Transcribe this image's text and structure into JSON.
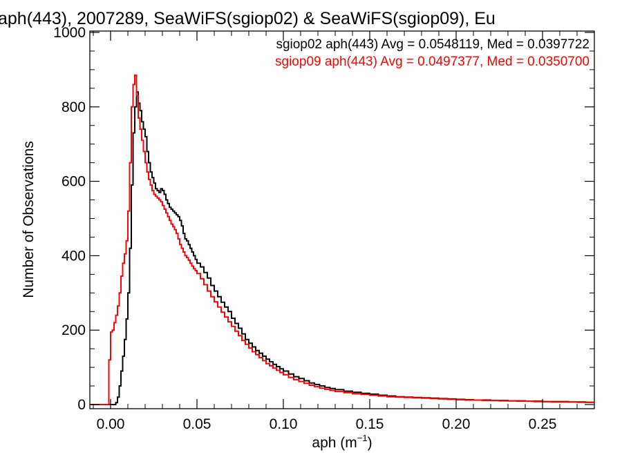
{
  "chart_data": {
    "type": "line",
    "style": "step-histogram",
    "title": "aph(443), 2007289, SeaWiFS(sgiop02) & SeaWiFS(sgiop09), Eu",
    "xlabel_base": "aph (m",
    "xlabel_exp": "−1",
    "xlabel_close": ")",
    "ylabel": "Number of Observations",
    "xlim": [
      -0.012,
      0.28
    ],
    "ylim": [
      0,
      1000
    ],
    "x_ticks": [
      {
        "value": 0.0,
        "label": "0.00"
      },
      {
        "value": 0.05,
        "label": "0.05"
      },
      {
        "value": 0.1,
        "label": "0.10"
      },
      {
        "value": 0.15,
        "label": "0.15"
      },
      {
        "value": 0.2,
        "label": "0.20"
      },
      {
        "value": 0.25,
        "label": "0.25"
      }
    ],
    "y_ticks": [
      {
        "value": 0,
        "label": "0"
      },
      {
        "value": 200,
        "label": "200"
      },
      {
        "value": 400,
        "label": "400"
      },
      {
        "value": 600,
        "label": "600"
      },
      {
        "value": 800,
        "label": "800"
      },
      {
        "value": 1000,
        "label": "1000"
      }
    ],
    "grid": false,
    "legend_position": "top-right",
    "series": [
      {
        "name": "sgiop02 aph(443) Avg = 0.0548119, Med = 0.0397722",
        "color": "#000000",
        "points": [
          [
            -0.012,
            0
          ],
          [
            0.0,
            0
          ],
          [
            0.002,
            0
          ],
          [
            0.003,
            5
          ],
          [
            0.004,
            20
          ],
          [
            0.005,
            50
          ],
          [
            0.006,
            90
          ],
          [
            0.007,
            130
          ],
          [
            0.008,
            175
          ],
          [
            0.009,
            230
          ],
          [
            0.01,
            300
          ],
          [
            0.011,
            420
          ],
          [
            0.012,
            590
          ],
          [
            0.013,
            730
          ],
          [
            0.014,
            800
          ],
          [
            0.015,
            840
          ],
          [
            0.016,
            810
          ],
          [
            0.017,
            790
          ],
          [
            0.018,
            760
          ],
          [
            0.019,
            740
          ],
          [
            0.02,
            720
          ],
          [
            0.021,
            680
          ],
          [
            0.022,
            650
          ],
          [
            0.023,
            625
          ],
          [
            0.024,
            610
          ],
          [
            0.025,
            595
          ],
          [
            0.026,
            580
          ],
          [
            0.027,
            575
          ],
          [
            0.028,
            570
          ],
          [
            0.029,
            580
          ],
          [
            0.03,
            575
          ],
          [
            0.031,
            565
          ],
          [
            0.032,
            550
          ],
          [
            0.033,
            540
          ],
          [
            0.034,
            530
          ],
          [
            0.035,
            525
          ],
          [
            0.036,
            520
          ],
          [
            0.037,
            515
          ],
          [
            0.038,
            510
          ],
          [
            0.039,
            505
          ],
          [
            0.04,
            495
          ],
          [
            0.041,
            480
          ],
          [
            0.042,
            460
          ],
          [
            0.043,
            445
          ],
          [
            0.044,
            440
          ],
          [
            0.045,
            430
          ],
          [
            0.046,
            420
          ],
          [
            0.047,
            410
          ],
          [
            0.048,
            400
          ],
          [
            0.049,
            390
          ],
          [
            0.05,
            380
          ],
          [
            0.052,
            370
          ],
          [
            0.054,
            355
          ],
          [
            0.056,
            340
          ],
          [
            0.058,
            320
          ],
          [
            0.06,
            305
          ],
          [
            0.062,
            290
          ],
          [
            0.064,
            275
          ],
          [
            0.066,
            262
          ],
          [
            0.068,
            250
          ],
          [
            0.07,
            232
          ],
          [
            0.072,
            218
          ],
          [
            0.074,
            205
          ],
          [
            0.076,
            190
          ],
          [
            0.078,
            175
          ],
          [
            0.08,
            165
          ],
          [
            0.082,
            155
          ],
          [
            0.084,
            145
          ],
          [
            0.086,
            138
          ],
          [
            0.088,
            130
          ],
          [
            0.09,
            122
          ],
          [
            0.092,
            115
          ],
          [
            0.094,
            108
          ],
          [
            0.096,
            102
          ],
          [
            0.098,
            96
          ],
          [
            0.1,
            90
          ],
          [
            0.103,
            82
          ],
          [
            0.106,
            75
          ],
          [
            0.109,
            70
          ],
          [
            0.112,
            64
          ],
          [
            0.115,
            58
          ],
          [
            0.118,
            54
          ],
          [
            0.121,
            50
          ],
          [
            0.124,
            46
          ],
          [
            0.127,
            43
          ],
          [
            0.13,
            40
          ],
          [
            0.135,
            36
          ],
          [
            0.14,
            33
          ],
          [
            0.145,
            30
          ],
          [
            0.15,
            28
          ],
          [
            0.155,
            25
          ],
          [
            0.16,
            23
          ],
          [
            0.165,
            21
          ],
          [
            0.17,
            20
          ],
          [
            0.175,
            19
          ],
          [
            0.18,
            18
          ],
          [
            0.185,
            17
          ],
          [
            0.19,
            16
          ],
          [
            0.195,
            15
          ],
          [
            0.2,
            14
          ],
          [
            0.205,
            13
          ],
          [
            0.21,
            12
          ],
          [
            0.215,
            12
          ],
          [
            0.22,
            11
          ],
          [
            0.225,
            11
          ],
          [
            0.23,
            10
          ],
          [
            0.235,
            10
          ],
          [
            0.24,
            9
          ],
          [
            0.245,
            9
          ],
          [
            0.25,
            8
          ],
          [
            0.255,
            8
          ],
          [
            0.26,
            8
          ],
          [
            0.265,
            7
          ],
          [
            0.27,
            7
          ],
          [
            0.275,
            6
          ],
          [
            0.28,
            6
          ]
        ]
      },
      {
        "name": "sgiop09 aph(443) Avg = 0.0497377, Med = 0.0350700",
        "color": "#ff0000",
        "points": [
          [
            -0.012,
            0
          ],
          [
            -0.002,
            0
          ],
          [
            -0.001,
            120
          ],
          [
            0.0,
            195
          ],
          [
            0.001,
            200
          ],
          [
            0.002,
            220
          ],
          [
            0.003,
            240
          ],
          [
            0.004,
            265
          ],
          [
            0.005,
            300
          ],
          [
            0.006,
            345
          ],
          [
            0.007,
            380
          ],
          [
            0.008,
            405
          ],
          [
            0.009,
            440
          ],
          [
            0.01,
            520
          ],
          [
            0.011,
            650
          ],
          [
            0.012,
            800
          ],
          [
            0.013,
            860
          ],
          [
            0.014,
            885
          ],
          [
            0.015,
            830
          ],
          [
            0.016,
            770
          ],
          [
            0.017,
            740
          ],
          [
            0.018,
            710
          ],
          [
            0.019,
            680
          ],
          [
            0.02,
            650
          ],
          [
            0.021,
            625
          ],
          [
            0.022,
            605
          ],
          [
            0.023,
            590
          ],
          [
            0.024,
            575
          ],
          [
            0.025,
            565
          ],
          [
            0.026,
            560
          ],
          [
            0.027,
            555
          ],
          [
            0.028,
            550
          ],
          [
            0.029,
            545
          ],
          [
            0.03,
            535
          ],
          [
            0.031,
            525
          ],
          [
            0.032,
            515
          ],
          [
            0.033,
            505
          ],
          [
            0.034,
            495
          ],
          [
            0.035,
            485
          ],
          [
            0.036,
            478
          ],
          [
            0.037,
            470
          ],
          [
            0.038,
            460
          ],
          [
            0.039,
            445
          ],
          [
            0.04,
            430
          ],
          [
            0.041,
            420
          ],
          [
            0.042,
            410
          ],
          [
            0.043,
            400
          ],
          [
            0.044,
            395
          ],
          [
            0.045,
            388
          ],
          [
            0.046,
            380
          ],
          [
            0.047,
            372
          ],
          [
            0.048,
            365
          ],
          [
            0.049,
            360
          ],
          [
            0.05,
            352
          ],
          [
            0.052,
            338
          ],
          [
            0.054,
            322
          ],
          [
            0.056,
            305
          ],
          [
            0.058,
            290
          ],
          [
            0.06,
            276
          ],
          [
            0.062,
            262
          ],
          [
            0.064,
            248
          ],
          [
            0.066,
            235
          ],
          [
            0.068,
            222
          ],
          [
            0.07,
            210
          ],
          [
            0.072,
            197
          ],
          [
            0.074,
            185
          ],
          [
            0.076,
            172
          ],
          [
            0.078,
            162
          ],
          [
            0.08,
            152
          ],
          [
            0.082,
            142
          ],
          [
            0.084,
            134
          ],
          [
            0.086,
            126
          ],
          [
            0.088,
            118
          ],
          [
            0.09,
            110
          ],
          [
            0.092,
            104
          ],
          [
            0.094,
            98
          ],
          [
            0.096,
            92
          ],
          [
            0.098,
            86
          ],
          [
            0.1,
            80
          ],
          [
            0.103,
            73
          ],
          [
            0.106,
            67
          ],
          [
            0.109,
            62
          ],
          [
            0.112,
            57
          ],
          [
            0.115,
            52
          ],
          [
            0.118,
            48
          ],
          [
            0.121,
            44
          ],
          [
            0.124,
            41
          ],
          [
            0.127,
            38
          ],
          [
            0.13,
            35
          ],
          [
            0.135,
            32
          ],
          [
            0.14,
            29
          ],
          [
            0.145,
            27
          ],
          [
            0.15,
            25
          ],
          [
            0.155,
            23
          ],
          [
            0.16,
            21
          ],
          [
            0.165,
            20
          ],
          [
            0.17,
            19
          ],
          [
            0.175,
            18
          ],
          [
            0.18,
            17
          ],
          [
            0.185,
            16
          ],
          [
            0.19,
            15
          ],
          [
            0.195,
            14
          ],
          [
            0.2,
            13
          ],
          [
            0.205,
            12
          ],
          [
            0.21,
            12
          ],
          [
            0.215,
            11
          ],
          [
            0.22,
            11
          ],
          [
            0.225,
            10
          ],
          [
            0.23,
            10
          ],
          [
            0.235,
            9
          ],
          [
            0.24,
            9
          ],
          [
            0.245,
            8
          ],
          [
            0.25,
            8
          ],
          [
            0.255,
            7
          ],
          [
            0.26,
            7
          ],
          [
            0.265,
            7
          ],
          [
            0.27,
            6
          ],
          [
            0.275,
            6
          ],
          [
            0.28,
            6
          ]
        ]
      }
    ]
  }
}
